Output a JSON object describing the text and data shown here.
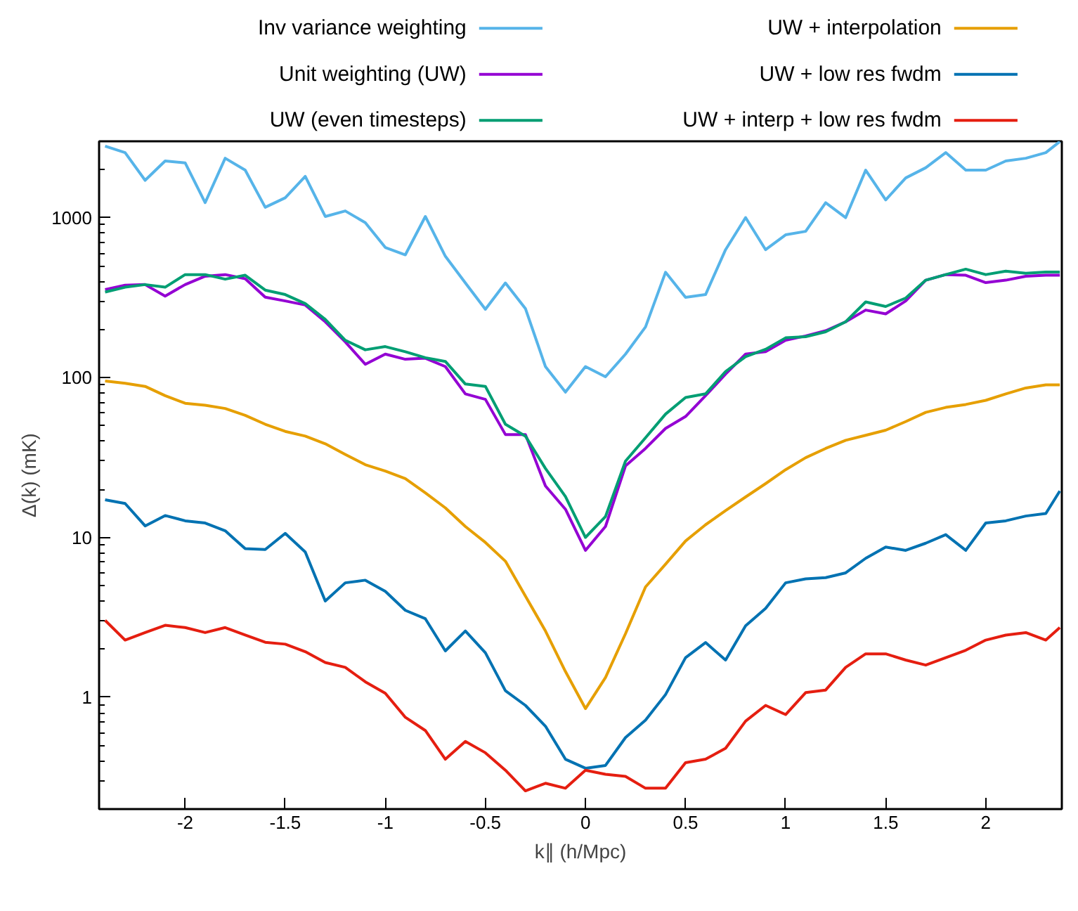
{
  "chart_data": {
    "type": "line",
    "xlabel": "k∥ (h/Mpc)",
    "ylabel": "Δ(k) (mK)",
    "x": [
      -2.4,
      -2.3,
      -2.2,
      -2.1,
      -2.0,
      -1.9,
      -1.8,
      -1.7,
      -1.6,
      -1.5,
      -1.4,
      -1.3,
      -1.2,
      -1.1,
      -1.0,
      -0.9,
      -0.8,
      -0.7,
      -0.6,
      -0.5,
      -0.4,
      -0.3,
      -0.2,
      -0.1,
      0,
      0.1,
      0.2,
      0.3,
      0.4,
      0.5,
      0.6,
      0.7,
      0.8,
      0.9,
      1.0,
      1.1,
      1.2,
      1.3,
      1.4,
      1.5,
      1.6,
      1.7,
      1.8,
      1.9,
      2.0,
      2.1,
      2.2,
      2.3,
      2.37
    ],
    "log": "y",
    "xlim": [
      -2.43,
      2.38
    ],
    "ylim": [
      0.2,
      3000
    ],
    "xticks": [
      -2,
      -1.5,
      -1,
      -0.5,
      0,
      0.5,
      1,
      1.5,
      2
    ],
    "yticks": [
      1,
      10,
      100,
      1000
    ],
    "grid": false,
    "legend": "top",
    "line_style": "solid",
    "marker": "none",
    "series": [
      {
        "name": "Inv variance weighting",
        "color": "#56b4e9",
        "values": [
          2800,
          2550,
          1710,
          2260,
          2200,
          1240,
          2350,
          1980,
          1160,
          1330,
          1810,
          1016,
          1100,
          930,
          650,
          585,
          1016,
          573,
          390,
          267,
          390,
          270,
          117,
          81,
          117,
          101,
          140,
          207,
          455,
          317,
          330,
          630,
          1000,
          630,
          780,
          820,
          1240,
          1000,
          1980,
          1290,
          1770,
          2050,
          2550,
          1980,
          1980,
          2260,
          2350,
          2550,
          2990
        ]
      },
      {
        "name": "Unit weighting (UW)",
        "color": "#9400d3",
        "values": [
          355,
          378,
          381,
          323,
          381,
          430,
          440,
          415,
          318,
          301,
          284,
          223,
          167,
          121,
          140,
          130,
          132,
          117,
          79,
          73,
          44,
          44,
          21,
          15,
          8.3,
          11.7,
          28,
          36,
          48,
          57,
          77,
          105,
          140,
          145,
          171,
          182,
          196,
          223,
          264,
          250,
          301,
          406,
          440,
          436,
          392,
          406,
          430,
          436,
          436
        ]
      },
      {
        "name": "UW (even timesteps)",
        "color": "#009e73",
        "values": [
          342,
          367,
          381,
          367,
          440,
          440,
          412,
          436,
          352,
          330,
          290,
          231,
          171,
          149,
          156,
          145,
          133,
          126,
          91,
          88,
          51,
          43,
          27,
          18,
          10,
          13.5,
          30,
          42,
          59,
          75,
          79,
          109,
          135,
          150,
          177,
          180,
          193,
          223,
          297,
          278,
          314,
          406,
          440,
          476,
          440,
          462,
          449,
          456,
          456
        ]
      },
      {
        "name": "UW + interpolation",
        "color": "#e69f00",
        "values": [
          95,
          92,
          88,
          77,
          69,
          67,
          64,
          58,
          51,
          46,
          43,
          38.5,
          33,
          28.5,
          26,
          23.3,
          19,
          15.3,
          11.7,
          9.3,
          7.1,
          4.3,
          2.6,
          1.45,
          0.85,
          1.33,
          2.5,
          4.9,
          6.8,
          9.5,
          12,
          14.7,
          17.9,
          21.7,
          26.5,
          31.5,
          36,
          40.5,
          43.5,
          46.8,
          53,
          60.5,
          65,
          67.8,
          72,
          79,
          86,
          90,
          90
        ]
      },
      {
        "name": "UW + low res fwdm",
        "color": "#0072b2",
        "values": [
          17.2,
          16.3,
          11.8,
          13.7,
          12.7,
          12.3,
          11,
          8.5,
          8.4,
          10.6,
          8.1,
          4.0,
          5.2,
          5.4,
          4.6,
          3.5,
          3.1,
          1.95,
          2.6,
          1.9,
          1.1,
          0.89,
          0.66,
          0.41,
          0.36,
          0.375,
          0.56,
          0.72,
          1.04,
          1.77,
          2.2,
          1.71,
          2.8,
          3.6,
          5.2,
          5.5,
          5.6,
          6.0,
          7.4,
          8.7,
          8.3,
          9.2,
          10.4,
          8.3,
          12.3,
          12.7,
          13.6,
          14.1,
          19.5
        ]
      },
      {
        "name": "UW + interp + low res fwdm",
        "color": "#e51e10",
        "values": [
          3.03,
          2.28,
          2.54,
          2.82,
          2.73,
          2.54,
          2.73,
          2.45,
          2.21,
          2.15,
          1.93,
          1.65,
          1.54,
          1.25,
          1.06,
          0.75,
          0.62,
          0.41,
          0.53,
          0.45,
          0.35,
          0.26,
          0.29,
          0.27,
          0.35,
          0.33,
          0.32,
          0.27,
          0.27,
          0.39,
          0.41,
          0.48,
          0.71,
          0.89,
          0.78,
          1.07,
          1.11,
          1.54,
          1.87,
          1.87,
          1.71,
          1.59,
          1.77,
          1.97,
          2.28,
          2.45,
          2.54,
          2.28,
          2.73
        ]
      }
    ]
  }
}
